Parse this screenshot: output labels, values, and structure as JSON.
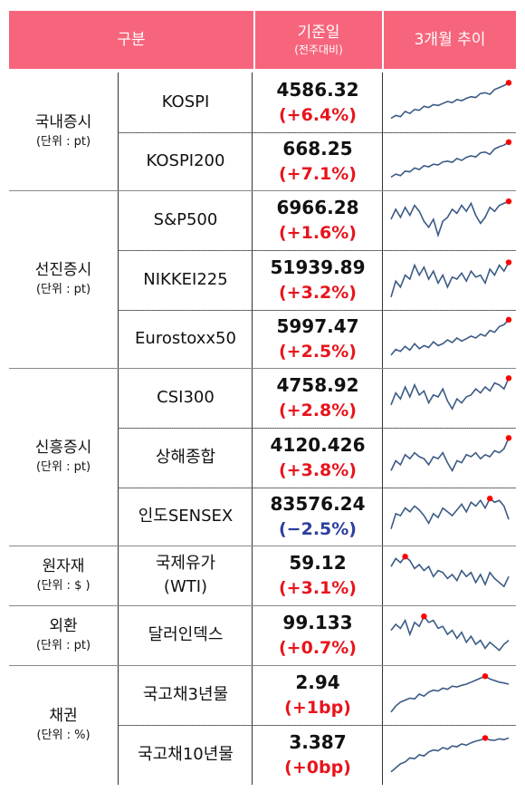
{
  "header": {
    "category": "구분",
    "base_date": "기준일",
    "base_date_sub": "(전주대비)",
    "trend": "3개월 추이",
    "color": "#f6657c"
  },
  "categories": [
    {
      "name": "국내증시",
      "unit": "(단위 : pt)"
    },
    {
      "name": "선진증시",
      "unit": "(단위 : pt)"
    },
    {
      "name": "신흥증시",
      "unit": "(단위 : pt)"
    },
    {
      "name": "원자재",
      "unit": "(단위 : $ )"
    },
    {
      "name": "외환",
      "unit": "(단위 : pt)"
    },
    {
      "name": "채권",
      "unit": "(단위 : %)"
    }
  ],
  "rows": [
    {
      "name": "KOSPI",
      "value": "4586.32",
      "change": "(+6.4%)",
      "direction": "up",
      "trend": [
        0.08,
        0.15,
        0.12,
        0.25,
        0.2,
        0.3,
        0.28,
        0.38,
        0.35,
        0.42,
        0.4,
        0.45,
        0.5,
        0.47,
        0.55,
        0.52,
        0.58,
        0.62,
        0.6,
        0.7,
        0.72,
        0.68,
        0.8,
        0.85,
        0.9,
        0.97
      ]
    },
    {
      "name": "KOSPI200",
      "value": "668.25",
      "change": "(+7.1%)",
      "direction": "up",
      "trend": [
        0.06,
        0.14,
        0.1,
        0.22,
        0.2,
        0.3,
        0.26,
        0.36,
        0.33,
        0.4,
        0.38,
        0.46,
        0.48,
        0.45,
        0.55,
        0.5,
        0.58,
        0.62,
        0.59,
        0.7,
        0.72,
        0.66,
        0.8,
        0.86,
        0.9,
        0.98
      ]
    },
    {
      "name": "S&P500",
      "value": "6966.28",
      "change": "(+1.6%)",
      "direction": "up",
      "trend": [
        0.5,
        0.75,
        0.55,
        0.8,
        0.6,
        0.85,
        0.7,
        0.45,
        0.3,
        0.5,
        0.1,
        0.45,
        0.55,
        0.75,
        0.65,
        0.85,
        0.7,
        0.9,
        0.6,
        0.4,
        0.55,
        0.8,
        0.7,
        0.85,
        0.9,
        0.95
      ]
    },
    {
      "name": "NIKKEI225",
      "value": "51939.89",
      "change": "(+3.2%)",
      "direction": "up",
      "trend": [
        0.05,
        0.45,
        0.3,
        0.6,
        0.5,
        0.85,
        0.6,
        0.8,
        0.5,
        0.7,
        0.4,
        0.6,
        0.3,
        0.55,
        0.5,
        0.65,
        0.45,
        0.7,
        0.55,
        0.6,
        0.4,
        0.75,
        0.6,
        0.85,
        0.7,
        0.92
      ]
    },
    {
      "name": "Eurostoxx50",
      "value": "5997.47",
      "change": "(+2.5%)",
      "direction": "up",
      "trend": [
        0.05,
        0.2,
        0.15,
        0.28,
        0.18,
        0.35,
        0.22,
        0.3,
        0.25,
        0.4,
        0.3,
        0.35,
        0.45,
        0.38,
        0.5,
        0.42,
        0.48,
        0.55,
        0.5,
        0.6,
        0.55,
        0.7,
        0.65,
        0.8,
        0.85,
        0.98
      ]
    },
    {
      "name": "CSI300",
      "value": "4758.92",
      "change": "(+2.8%)",
      "direction": "up",
      "trend": [
        0.3,
        0.6,
        0.45,
        0.75,
        0.5,
        0.8,
        0.55,
        0.65,
        0.35,
        0.55,
        0.5,
        0.7,
        0.4,
        0.2,
        0.45,
        0.35,
        0.5,
        0.55,
        0.7,
        0.6,
        0.75,
        0.65,
        0.85,
        0.8,
        0.7,
        0.97
      ]
    },
    {
      "name": "상해종합",
      "value": "4120.426",
      "change": "(+3.8%)",
      "direction": "up",
      "trend": [
        0.15,
        0.4,
        0.3,
        0.55,
        0.45,
        0.6,
        0.5,
        0.45,
        0.3,
        0.5,
        0.45,
        0.6,
        0.35,
        0.15,
        0.4,
        0.35,
        0.55,
        0.5,
        0.6,
        0.45,
        0.55,
        0.5,
        0.65,
        0.6,
        0.7,
        0.97
      ]
    },
    {
      "name": "인도SENSEX",
      "value": "83576.24",
      "change": "(−2.5%)",
      "direction": "down",
      "trend": [
        0.15,
        0.55,
        0.5,
        0.7,
        0.6,
        0.75,
        0.65,
        0.5,
        0.3,
        0.55,
        0.45,
        0.7,
        0.6,
        0.5,
        0.65,
        0.8,
        0.6,
        0.85,
        0.75,
        0.9,
        0.7,
        0.95,
        0.85,
        0.9,
        0.75,
        0.4
      ]
    },
    {
      "name": "국제유가\n(WTI)",
      "value": "59.12",
      "change": "(+3.1%)",
      "direction": "up",
      "trend": [
        0.7,
        0.9,
        0.8,
        0.95,
        0.85,
        0.65,
        0.75,
        0.6,
        0.7,
        0.45,
        0.6,
        0.55,
        0.4,
        0.5,
        0.35,
        0.6,
        0.45,
        0.55,
        0.3,
        0.5,
        0.25,
        0.55,
        0.4,
        0.3,
        0.2,
        0.45
      ]
    },
    {
      "name": "달러인덱스",
      "value": "99.133",
      "change": "(+0.7%)",
      "direction": "up",
      "trend": [
        0.6,
        0.75,
        0.65,
        0.85,
        0.5,
        0.8,
        0.7,
        0.95,
        0.8,
        0.85,
        0.65,
        0.7,
        0.5,
        0.6,
        0.4,
        0.55,
        0.3,
        0.45,
        0.25,
        0.35,
        0.15,
        0.3,
        0.2,
        0.1,
        0.25,
        0.35
      ]
    },
    {
      "name": "국고채3년물",
      "value": "2.94",
      "change": "(+1bp)",
      "direction": "up",
      "trend": [
        0.05,
        0.2,
        0.3,
        0.35,
        0.4,
        0.38,
        0.5,
        0.45,
        0.55,
        0.6,
        0.58,
        0.65,
        0.62,
        0.7,
        0.68,
        0.72,
        0.75,
        0.8,
        0.85,
        0.9,
        0.95,
        0.88,
        0.84,
        0.8,
        0.78,
        0.75
      ]
    },
    {
      "name": "국고채10년물",
      "value": "3.387",
      "change": "(+0bp)",
      "direction": "up",
      "trend": [
        0.05,
        0.15,
        0.25,
        0.3,
        0.4,
        0.38,
        0.48,
        0.45,
        0.55,
        0.6,
        0.58,
        0.66,
        0.62,
        0.7,
        0.68,
        0.75,
        0.72,
        0.78,
        0.82,
        0.85,
        0.9,
        0.85,
        0.84,
        0.88,
        0.86,
        0.9
      ]
    }
  ],
  "colors": {
    "up": "#e8141c",
    "down": "#2c3e9e",
    "line": "#3b5b85",
    "marker": "#ff0000"
  }
}
